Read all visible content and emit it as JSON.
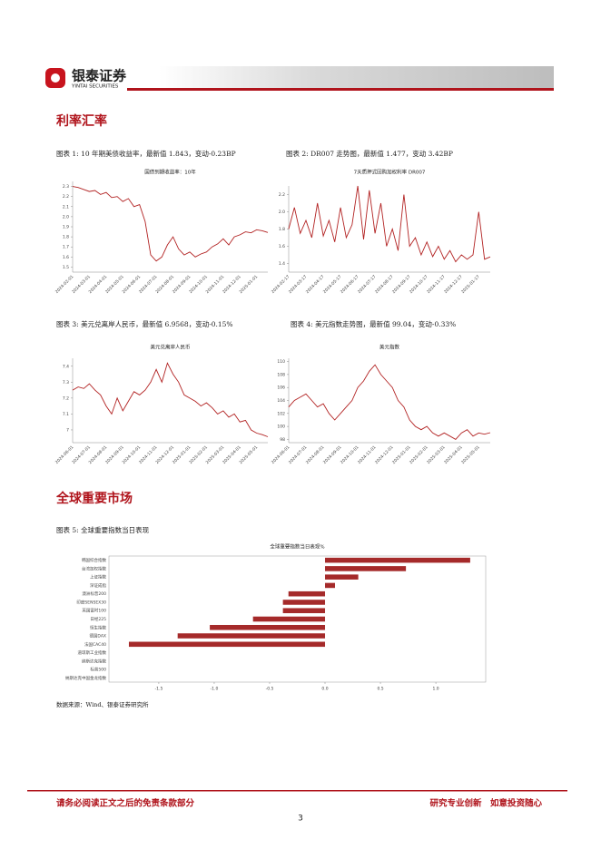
{
  "header": {
    "brand": "银泰证券",
    "brand_en": "YINTAI SECURITIES"
  },
  "sections": [
    "利率汇率",
    "全球重要市场"
  ],
  "captions": [
    "图表 1: 10 年期美债收益率，最新值 1.843，变动-0.23BP",
    "图表 2: DR007 走势图，最新值 1.477，变动 3.42BP",
    "图表 3: 美元兑离岸人民币，最新值 6.9568，变动-0.15%",
    "图表 4: 美元指数走势图，最新值 99.04，变动-0.33%",
    "图表 5: 全球重要指数当日表现"
  ],
  "source": "数据来源：Wind、银泰证券研究所",
  "footer": {
    "left": "请务必阅读正文之后的免责条款部分",
    "right": "研究专业创新　如意投资随心",
    "page": "3"
  },
  "chart_data": [
    {
      "type": "line",
      "title": "国债到期收益率：10年",
      "color": "#b22222",
      "categories": [
        "2024-02-01",
        null,
        null,
        "2024-03-01",
        null,
        null,
        "2024-04-01",
        null,
        null,
        "2024-05-01",
        null,
        null,
        "2024-06-01",
        null,
        null,
        "2024-07-01",
        null,
        null,
        "2024-08-01",
        null,
        null,
        "2024-09-01",
        null,
        null,
        "2024-10-01",
        null,
        null,
        "2024-11-01",
        null,
        null,
        "2024-12-01",
        null,
        null,
        "2025-01-01",
        null,
        null
      ],
      "values": [
        2.3,
        2.29,
        2.27,
        2.25,
        2.26,
        2.22,
        2.24,
        2.19,
        2.2,
        2.15,
        2.18,
        2.1,
        2.12,
        1.95,
        1.62,
        1.56,
        1.6,
        1.72,
        1.8,
        1.68,
        1.62,
        1.65,
        1.6,
        1.63,
        1.65,
        1.7,
        1.73,
        1.78,
        1.72,
        1.8,
        1.82,
        1.85,
        1.84,
        1.87,
        1.86,
        1.843
      ],
      "ylim": [
        1.45,
        2.35
      ],
      "yticks": [
        1.5,
        1.6,
        1.7,
        1.8,
        1.9,
        {
          "value": 2,
          "label": "2.0"
        },
        2.1,
        2.2,
        2.3
      ]
    },
    {
      "type": "line",
      "title": "7天质押式回购加权利率 DR007",
      "color": "#b22222",
      "categories": [
        "2024-02-17",
        null,
        null,
        "2024-03-17",
        null,
        null,
        "2024-04-17",
        null,
        null,
        "2024-05-17",
        null,
        null,
        "2024-06-17",
        null,
        null,
        "2024-07-17",
        null,
        null,
        "2024-08-17",
        null,
        null,
        "2024-09-17",
        null,
        null,
        "2024-10-17",
        null,
        null,
        "2024-11-17",
        null,
        null,
        "2024-12-17",
        null,
        null,
        "2025-01-17",
        null,
        null
      ],
      "values": [
        1.8,
        2.05,
        1.75,
        1.9,
        1.7,
        2.1,
        1.72,
        1.9,
        1.65,
        2.05,
        1.7,
        1.85,
        2.3,
        1.68,
        2.25,
        1.75,
        2.1,
        1.6,
        1.8,
        1.55,
        2.2,
        1.6,
        1.7,
        1.5,
        1.65,
        1.48,
        1.6,
        1.45,
        1.55,
        1.42,
        1.5,
        1.45,
        1.5,
        2.0,
        1.45,
        1.477
      ],
      "ylim": [
        1.3,
        2.3
      ],
      "yticks": [
        1.4,
        1.6,
        1.8,
        {
          "value": 2,
          "label": "2.0"
        },
        2.2
      ]
    },
    {
      "type": "line",
      "title": "美元兑离岸人民币",
      "color": "#b22222",
      "categories": [
        "2024-06-01",
        null,
        null,
        "2024-07-01",
        null,
        null,
        "2024-08-01",
        null,
        null,
        "2024-09-01",
        null,
        null,
        "2024-10-01",
        null,
        null,
        "2024-11-01",
        null,
        null,
        "2024-12-01",
        null,
        null,
        "2025-01-01",
        null,
        null,
        "2025-02-01",
        null,
        null,
        "2025-03-01",
        null,
        null,
        "2025-04-01",
        null,
        null,
        "2025-05-01",
        null,
        null
      ],
      "values": [
        7.25,
        7.27,
        7.26,
        7.29,
        7.25,
        7.22,
        7.15,
        7.1,
        7.2,
        7.12,
        7.18,
        7.24,
        7.22,
        7.25,
        7.3,
        7.38,
        7.3,
        7.42,
        7.35,
        7.3,
        7.22,
        7.2,
        7.18,
        7.15,
        7.17,
        7.14,
        7.1,
        7.12,
        7.08,
        7.1,
        7.05,
        7.06,
        7.0,
        6.98,
        6.97,
        6.9568
      ],
      "ylim": [
        6.92,
        7.45
      ],
      "yticks": [
        7,
        7.1,
        7.2,
        7.3,
        7.4
      ]
    },
    {
      "type": "line",
      "title": "美元指数",
      "color": "#b22222",
      "categories": [
        "2024-06-01",
        null,
        null,
        "2024-07-01",
        null,
        null,
        "2024-08-01",
        null,
        null,
        "2024-09-01",
        null,
        null,
        "2024-10-01",
        null,
        null,
        "2024-11-01",
        null,
        null,
        "2024-12-01",
        null,
        null,
        "2025-01-01",
        null,
        null,
        "2025-02-01",
        null,
        null,
        "2025-03-01",
        null,
        null,
        "2025-04-01",
        null,
        null,
        "2025-05-01",
        null,
        null
      ],
      "values": [
        103,
        104,
        104.5,
        105,
        104,
        103,
        103.5,
        102,
        101,
        102,
        103,
        104,
        106,
        107,
        108.5,
        109.5,
        108,
        107,
        106,
        104,
        103,
        101,
        100,
        99.5,
        100,
        99,
        98.5,
        99,
        98.5,
        98,
        99,
        99.5,
        98.5,
        99,
        98.8,
        99.04
      ],
      "ylim": [
        97.5,
        110.5
      ],
      "yticks": [
        98,
        100,
        102,
        104,
        106,
        108,
        110
      ]
    },
    {
      "type": "hbar",
      "title": "全球重要指数当日表现%",
      "color": "#a52a2a",
      "categories": [
        "韩国综合指数",
        "台湾加权指数",
        "上证指数",
        "深证成指",
        "澳洲标普200",
        "印度SENSEX30",
        "英国富时100",
        "日经225",
        "恒生指数",
        "德国DAX",
        "法国CAC40",
        "道琼斯工业指数",
        "纳斯达克指数",
        "标普500",
        "纳斯达克中国金龙指数"
      ],
      "values": [
        1.31,
        0.73,
        0.3,
        0.09,
        -0.33,
        -0.38,
        -0.38,
        -0.65,
        -1.04,
        -1.33,
        -1.77,
        0,
        0,
        0,
        0
      ],
      "xlim": [
        -1.95,
        1.45
      ],
      "xticks": [
        -1.5,
        {
          "value": -1,
          "label": "-1.0"
        },
        -0.5,
        {
          "value": 0,
          "label": "0.0"
        },
        0.5,
        {
          "value": 1,
          "label": "1.0"
        }
      ]
    }
  ]
}
